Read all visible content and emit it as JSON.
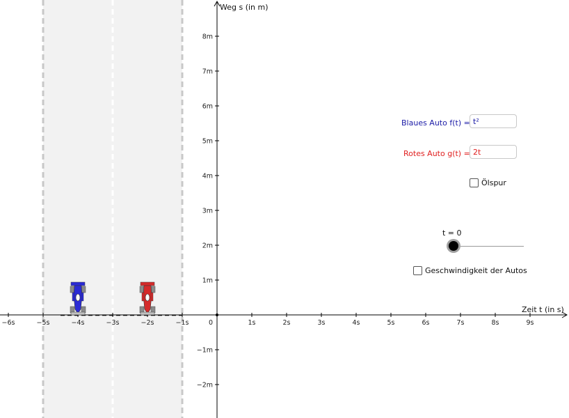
{
  "chart_data": {
    "type": "line",
    "xlabel": "Zeit t (in s)",
    "ylabel": "Weg s (in m)",
    "x_ticks": [
      "−6s",
      "−5s",
      "−4s",
      "−3s",
      "−2s",
      "−1s",
      "0",
      "1s",
      "2s",
      "3s",
      "4s",
      "5s",
      "6s",
      "7s",
      "8s",
      "9s"
    ],
    "y_ticks": [
      "8m",
      "7m",
      "6m",
      "5m",
      "4m",
      "3m",
      "2m",
      "1m",
      "−1m",
      "−2m"
    ],
    "xlim": [
      -6.25,
      10
    ],
    "ylim": [
      -2.9,
      9
    ],
    "grid": false,
    "road": {
      "x_range": [
        -5,
        -1
      ],
      "lane_divider_x": -3
    },
    "cars": [
      {
        "name": "blue-car",
        "t": -4,
        "color": "#2a2ad4"
      },
      {
        "name": "red-car",
        "t": -2,
        "color": "#d42a2a"
      }
    ]
  },
  "inputs": {
    "blue": {
      "label": "Blaues Auto f(t) =",
      "value": "t²",
      "color": "#1a1aa6"
    },
    "red": {
      "label": "Rotes Auto g(t) =",
      "value": "2t",
      "color": "#e02020"
    }
  },
  "checkboxes": {
    "oil": {
      "label": "Ölspur",
      "checked": false
    },
    "speed": {
      "label": "Geschwindigkeit der Autos",
      "checked": false
    }
  },
  "slider": {
    "label": "t = 0",
    "value": 0
  }
}
